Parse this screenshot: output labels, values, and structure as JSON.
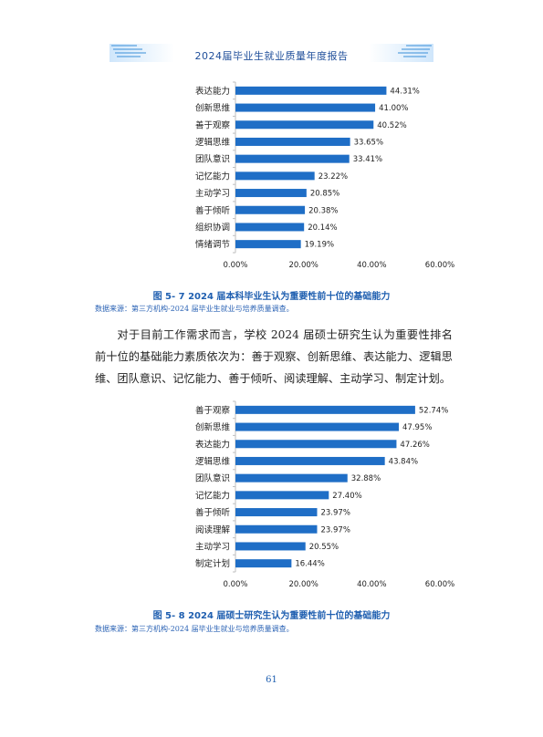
{
  "header": {
    "title": "2024届毕业生就业质量年度报告"
  },
  "colors": {
    "bar": "#1f6ec6",
    "accent": "#1f5fb0"
  },
  "captions": {
    "fig1": "图 5- 7    2024 届本科毕业生认为重要性前十位的基础能力",
    "fig1_source": "数据来源：第三方机构-2024 届毕业生就业与培养质量调查。",
    "fig2": "图 5- 8    2024 届硕士研究生认为重要性前十位的基础能力",
    "fig2_source": "数据来源：第三方机构-2024 届毕业生就业与培养质量调查。"
  },
  "paragraph": "对于目前工作需求而言，学校 2024 届硕士研究生认为重要性排名前十位的基础能力素质依次为：善于观察、创新思维、表达能力、逻辑思维、团队意识、记忆能力、善于倾听、阅读理解、主动学习、制定计划。",
  "page_number": "61",
  "chart_data": [
    {
      "type": "bar",
      "orientation": "horizontal",
      "categories": [
        "表达能力",
        "创新思维",
        "善于观察",
        "逻辑思维",
        "团队意识",
        "记忆能力",
        "主动学习",
        "善于倾听",
        "组织协调",
        "情绪调节"
      ],
      "values": [
        44.31,
        41.0,
        40.52,
        33.65,
        33.41,
        23.22,
        20.85,
        20.38,
        20.14,
        19.19
      ],
      "value_labels": [
        "44.31%",
        "41.00%",
        "40.52%",
        "33.65%",
        "33.41%",
        "23.22%",
        "20.85%",
        "20.38%",
        "20.14%",
        "19.19%"
      ],
      "xlim": [
        0,
        60
      ],
      "xticks": [
        "0.00%",
        "20.00%",
        "40.00%",
        "60.00%"
      ],
      "grid": false,
      "legend": "none"
    },
    {
      "type": "bar",
      "orientation": "horizontal",
      "categories": [
        "善于观察",
        "创新思维",
        "表达能力",
        "逻辑思维",
        "团队意识",
        "记忆能力",
        "善于倾听",
        "阅读理解",
        "主动学习",
        "制定计划"
      ],
      "values": [
        52.74,
        47.95,
        47.26,
        43.84,
        32.88,
        27.4,
        23.97,
        23.97,
        20.55,
        16.44
      ],
      "value_labels": [
        "52.74%",
        "47.95%",
        "47.26%",
        "43.84%",
        "32.88%",
        "27.40%",
        "23.97%",
        "23.97%",
        "20.55%",
        "16.44%"
      ],
      "xlim": [
        0,
        60
      ],
      "xticks": [
        "0.00%",
        "20.00%",
        "40.00%",
        "60.00%"
      ],
      "grid": false,
      "legend": "none"
    }
  ]
}
